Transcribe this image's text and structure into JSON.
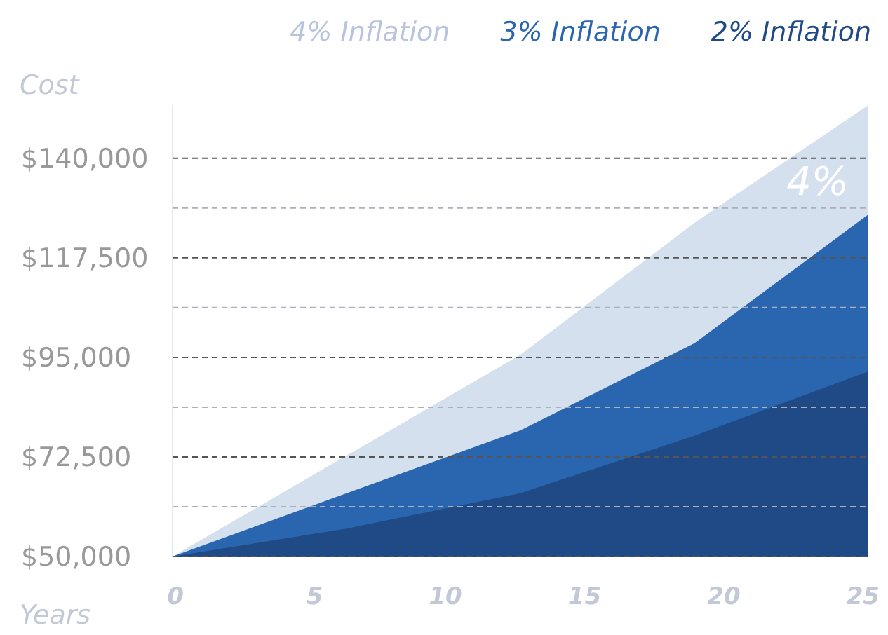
{
  "chart_data": {
    "type": "area",
    "xlabel": "Years",
    "ylabel": "Cost",
    "x": [
      0,
      6.25,
      12.5,
      18.75,
      25
    ],
    "series": [
      {
        "name": "4% Inflation",
        "color": "#d5e0ee",
        "values": [
          50000,
          72800,
          95600,
          125400,
          152000
        ]
      },
      {
        "name": "3% Inflation",
        "color": "#2a65b0",
        "values": [
          50000,
          64300,
          78500,
          98200,
          127300
        ]
      },
      {
        "name": "2% Inflation",
        "color": "#1f4a86",
        "values": [
          50000,
          56300,
          64300,
          77300,
          91800
        ]
      }
    ],
    "xlim": [
      0,
      25
    ],
    "ylim": [
      50000,
      152000
    ],
    "xticks": [
      0,
      5,
      10,
      15,
      20,
      25
    ],
    "yticks": [
      {
        "value": 50000,
        "label": "$50,000"
      },
      {
        "value": 61250,
        "label": null
      },
      {
        "value": 72500,
        "label": "$72,500"
      },
      {
        "value": 83750,
        "label": null
      },
      {
        "value": 95000,
        "label": "$95,000"
      },
      {
        "value": 106250,
        "label": null
      },
      {
        "value": 117500,
        "label": "$117,500"
      },
      {
        "value": 128750,
        "label": null
      },
      {
        "value": 140000,
        "label": "$140,000"
      }
    ],
    "grid": "y",
    "legend": "top right",
    "annotations": [
      "4%"
    ]
  }
}
